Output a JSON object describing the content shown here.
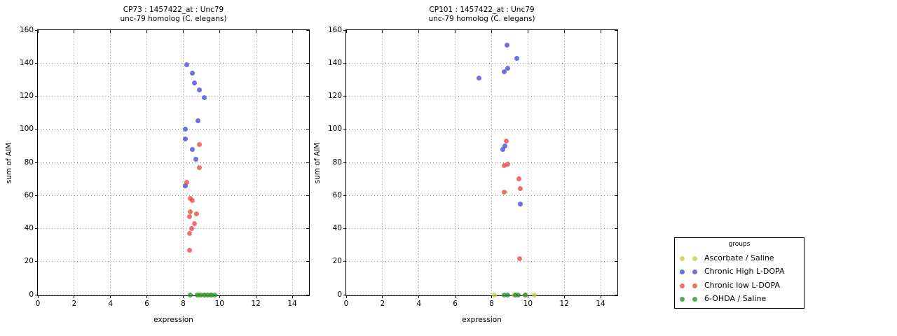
{
  "figure": {
    "background": "#ffffff"
  },
  "legend": {
    "title": "groups",
    "items": [
      {
        "label": "Ascorbate / Saline",
        "color": "rgba(200,200,55,0.75)"
      },
      {
        "label": "Chronic High L-DOPA",
        "color": "rgba(55,55,220,0.72)"
      },
      {
        "label": "Chronic low L-DOPA",
        "color": "rgba(235,55,55,0.72)"
      },
      {
        "label": "6-OHDA / Saline",
        "color": "rgba(40,145,45,0.78)"
      }
    ]
  },
  "chart_data": [
    {
      "type": "scatter",
      "title": "CP73 : 1457422_at : Unc79",
      "subtitle": "unc-79 homolog (C. elegans)",
      "xlabel": "expression",
      "ylabel": "sum of AIM",
      "xlim": [
        0,
        15
      ],
      "ylim": [
        0,
        160
      ],
      "xticks": [
        0,
        2,
        4,
        6,
        8,
        10,
        12,
        14
      ],
      "yticks": [
        0,
        20,
        40,
        60,
        80,
        100,
        120,
        140,
        160
      ],
      "grid": true,
      "legend_position": "outside-right",
      "series": [
        {
          "name": "Ascorbate / Saline",
          "color": "rgba(200,200,55,0.75)",
          "points": [
            [
              8.85,
              0
            ],
            [
              9.2,
              0
            ],
            [
              9.5,
              0
            ]
          ]
        },
        {
          "name": "Chronic High L-DOPA",
          "color": "rgba(55,55,220,0.72)",
          "points": [
            [
              8.2,
              139
            ],
            [
              8.5,
              134
            ],
            [
              8.6,
              128
            ],
            [
              8.9,
              124
            ],
            [
              9.15,
              119
            ],
            [
              8.8,
              105
            ],
            [
              8.1,
              100
            ],
            [
              8.1,
              94
            ],
            [
              8.5,
              88
            ],
            [
              8.7,
              82
            ],
            [
              8.1,
              66
            ]
          ]
        },
        {
          "name": "Chronic low L-DOPA",
          "color": "rgba(235,55,55,0.72)",
          "points": [
            [
              8.9,
              91
            ],
            [
              8.9,
              77
            ],
            [
              8.2,
              68
            ],
            [
              8.4,
              58
            ],
            [
              8.5,
              57
            ],
            [
              8.37,
              50
            ],
            [
              8.73,
              49
            ],
            [
              8.35,
              47
            ],
            [
              8.6,
              43
            ],
            [
              8.46,
              40
            ],
            [
              8.35,
              37
            ],
            [
              8.35,
              27
            ]
          ]
        },
        {
          "name": "6-OHDA / Saline",
          "color": "rgba(40,145,45,0.78)",
          "points": [
            [
              8.4,
              0
            ],
            [
              8.77,
              0
            ],
            [
              8.96,
              0
            ],
            [
              9.16,
              0
            ],
            [
              9.35,
              0
            ],
            [
              9.54,
              0
            ],
            [
              9.73,
              0
            ]
          ]
        }
      ]
    },
    {
      "type": "scatter",
      "title": "CP101 : 1457422_at : Unc79",
      "subtitle": "unc-79 homolog (C. elegans)",
      "xlabel": "expression",
      "ylabel": "sum of AIM",
      "xlim": [
        0,
        15
      ],
      "ylim": [
        0,
        160
      ],
      "xticks": [
        0,
        2,
        4,
        6,
        8,
        10,
        12,
        14
      ],
      "yticks": [
        0,
        20,
        40,
        60,
        80,
        100,
        120,
        140,
        160
      ],
      "grid": true,
      "legend_position": "outside-right",
      "series": [
        {
          "name": "Ascorbate / Saline",
          "color": "rgba(200,200,55,0.75)",
          "points": [
            [
              8.15,
              0
            ],
            [
              9.25,
              0
            ],
            [
              9.85,
              0
            ],
            [
              10.35,
              0
            ]
          ]
        },
        {
          "name": "Chronic High L-DOPA",
          "color": "rgba(55,55,220,0.72)",
          "points": [
            [
              7.3,
              131
            ],
            [
              8.85,
              151
            ],
            [
              9.4,
              143
            ],
            [
              8.7,
              135
            ],
            [
              8.87,
              137
            ],
            [
              8.6,
              88
            ],
            [
              8.73,
              90
            ],
            [
              9.6,
              55
            ]
          ]
        },
        {
          "name": "Chronic low L-DOPA",
          "color": "rgba(235,55,55,0.72)",
          "points": [
            [
              8.8,
              93
            ],
            [
              8.7,
              78
            ],
            [
              8.9,
              79
            ],
            [
              9.5,
              70
            ],
            [
              9.6,
              64
            ],
            [
              8.7,
              62
            ],
            [
              9.55,
              22
            ]
          ]
        },
        {
          "name": "6-OHDA / Saline",
          "color": "rgba(40,145,45,0.78)",
          "points": [
            [
              8.7,
              0
            ],
            [
              8.9,
              0
            ],
            [
              9.3,
              0
            ],
            [
              9.45,
              0
            ],
            [
              9.87,
              0
            ]
          ]
        }
      ]
    }
  ]
}
